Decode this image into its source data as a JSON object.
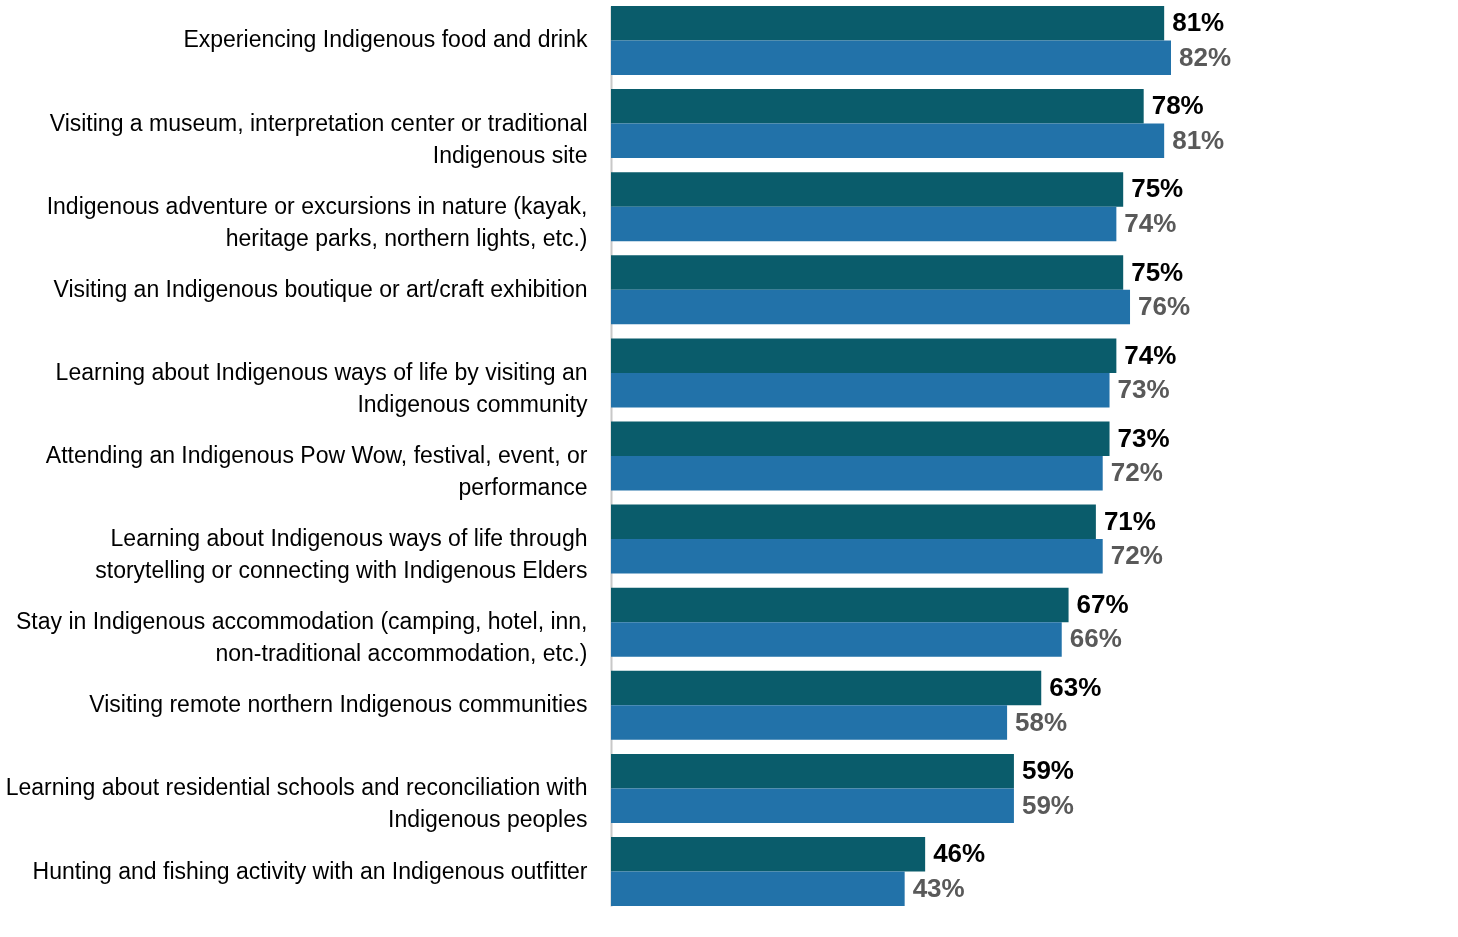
{
  "chart_data": {
    "type": "bar",
    "orientation": "horizontal",
    "legend": false,
    "grid": false,
    "categories": [
      "Experiencing Indigenous food and drink",
      "Visiting a museum, interpretation center or traditional Indigenous site",
      "Indigenous adventure or excursions in nature (kayak, heritage parks, northern lights, etc.)",
      "Visiting an Indigenous boutique or art/craft exhibition",
      "Learning about Indigenous ways of life by visiting an Indigenous community",
      "Attending an Indigenous Pow Wow, festival, event, or performance",
      "Learning about Indigenous ways of life through storytelling or connecting with Indigenous Elders",
      "Stay in Indigenous accommodation (camping, hotel, inn, non-traditional accommodation, etc.)",
      "Visiting remote northern Indigenous communities",
      "Learning about residential schools and reconciliation with Indigenous peoples",
      "Hunting and fishing activity with an Indigenous outfitter"
    ],
    "series": [
      {
        "color": "#0a5c6b",
        "values": [
          81,
          78,
          75,
          75,
          74,
          73,
          71,
          67,
          63,
          59,
          46
        ],
        "value_labels": [
          "81%",
          "78%",
          "75%",
          "75%",
          "74%",
          "73%",
          "71%",
          "67%",
          "63%",
          "59%",
          "46%"
        ]
      },
      {
        "color": "#2272a9",
        "values": [
          82,
          81,
          74,
          76,
          73,
          72,
          72,
          66,
          58,
          59,
          43
        ],
        "value_labels": [
          "82%",
          "81%",
          "74%",
          "76%",
          "73%",
          "72%",
          "72%",
          "66%",
          "58%",
          "59%",
          "43%"
        ]
      }
    ]
  }
}
